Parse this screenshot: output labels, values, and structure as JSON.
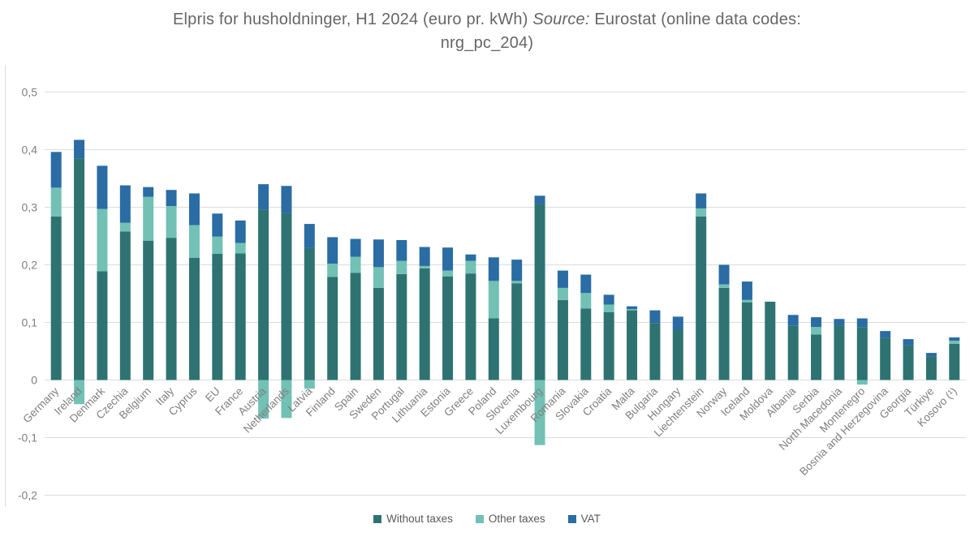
{
  "title": {
    "prefix": "Elpris for husholdninger, H1 2024 (euro pr. kWh) ",
    "source_word": "Source:",
    "rest": " Eurostat (online data codes:",
    "line2": "nrg_pc_204)"
  },
  "colors": {
    "without_taxes": "#2E7372",
    "other_taxes": "#72C1B4",
    "vat": "#2A6CA3",
    "gridline": "#DCDCDC",
    "axis_text": "#7F7F7F",
    "title_text": "#666666"
  },
  "chart_data": {
    "type": "bar",
    "stacked": true,
    "title": "Elpris for husholdninger, H1 2024 (euro pr. kWh) Source: Eurostat (online data codes: nrg_pc_204)",
    "xlabel": "",
    "ylabel": "",
    "ylim": [
      -0.2,
      0.5
    ],
    "grid": true,
    "legend_position": "bottom",
    "y_ticks": [
      {
        "value": 0.5,
        "label": "0,5"
      },
      {
        "value": 0.4,
        "label": "0,4"
      },
      {
        "value": 0.3,
        "label": "0,3"
      },
      {
        "value": 0.2,
        "label": "0,2"
      },
      {
        "value": 0.1,
        "label": "0,1"
      },
      {
        "value": 0,
        "label": "0"
      },
      {
        "value": -0.1,
        "label": "-0,1"
      },
      {
        "value": -0.2,
        "label": "-0,2"
      }
    ],
    "categories": [
      "Germany",
      "Ireland",
      "Denmark",
      "Czechia",
      "Belgium",
      "Italy",
      "Cyprus",
      "EU",
      "France",
      "Austria",
      "Netherlands",
      "Latvia",
      "Finland",
      "Spain",
      "Sweden",
      "Portugal",
      "Lithuania",
      "Estonia",
      "Greece",
      "Poland",
      "Slovenia",
      "Luxembourg",
      "Romania",
      "Slovakia",
      "Croatia",
      "Malta",
      "Bulgaria",
      "Hungary",
      "Liechtenstein",
      "Norway",
      "Iceland",
      "Moldova",
      "Albania",
      "Serbia",
      "North Macedonia",
      "Montenegro",
      "Bosnia and Herzegovina",
      "Georgia",
      "Türkiye",
      "Kosovo (¹)"
    ],
    "series": [
      {
        "name": "Without taxes",
        "color_key": "without_taxes",
        "values": [
          0.284,
          0.385,
          0.189,
          0.258,
          0.242,
          0.247,
          0.212,
          0.219,
          0.22,
          0.296,
          0.29,
          0.229,
          0.179,
          0.186,
          0.16,
          0.184,
          0.194,
          0.18,
          0.185,
          0.107,
          0.168,
          0.305,
          0.139,
          0.124,
          0.118,
          0.121,
          0.099,
          0.088,
          0.284,
          0.16,
          0.135,
          0.136,
          0.094,
          0.079,
          0.095,
          0.092,
          0.073,
          0.06,
          0.041,
          0.063
        ]
      },
      {
        "name": "Other taxes",
        "color_key": "other_taxes",
        "values": [
          0.05,
          -0.042,
          0.108,
          0.015,
          0.076,
          0.055,
          0.057,
          0.03,
          0.018,
          -0.067,
          -0.066,
          -0.015,
          0.023,
          0.028,
          0.036,
          0.023,
          0.004,
          0.01,
          0.022,
          0.065,
          0.004,
          -0.113,
          0.021,
          0.027,
          0.013,
          0.002,
          0,
          0,
          0.014,
          0.006,
          0.004,
          0,
          0,
          0.013,
          0,
          -0.008,
          0,
          0,
          0,
          0.005
        ]
      },
      {
        "name": "VAT",
        "color_key": "vat",
        "values": [
          0.062,
          0.032,
          0.075,
          0.065,
          0.017,
          0.028,
          0.055,
          0.04,
          0.039,
          0.044,
          0.047,
          0.042,
          0.046,
          0.031,
          0.048,
          0.036,
          0.033,
          0.04,
          0.011,
          0.041,
          0.037,
          0.015,
          0.03,
          0.032,
          0.017,
          0.005,
          0.022,
          0.022,
          0.026,
          0.034,
          0.032,
          0,
          0.019,
          0.017,
          0.011,
          0.015,
          0.012,
          0.011,
          0.006,
          0.006
        ]
      }
    ]
  }
}
